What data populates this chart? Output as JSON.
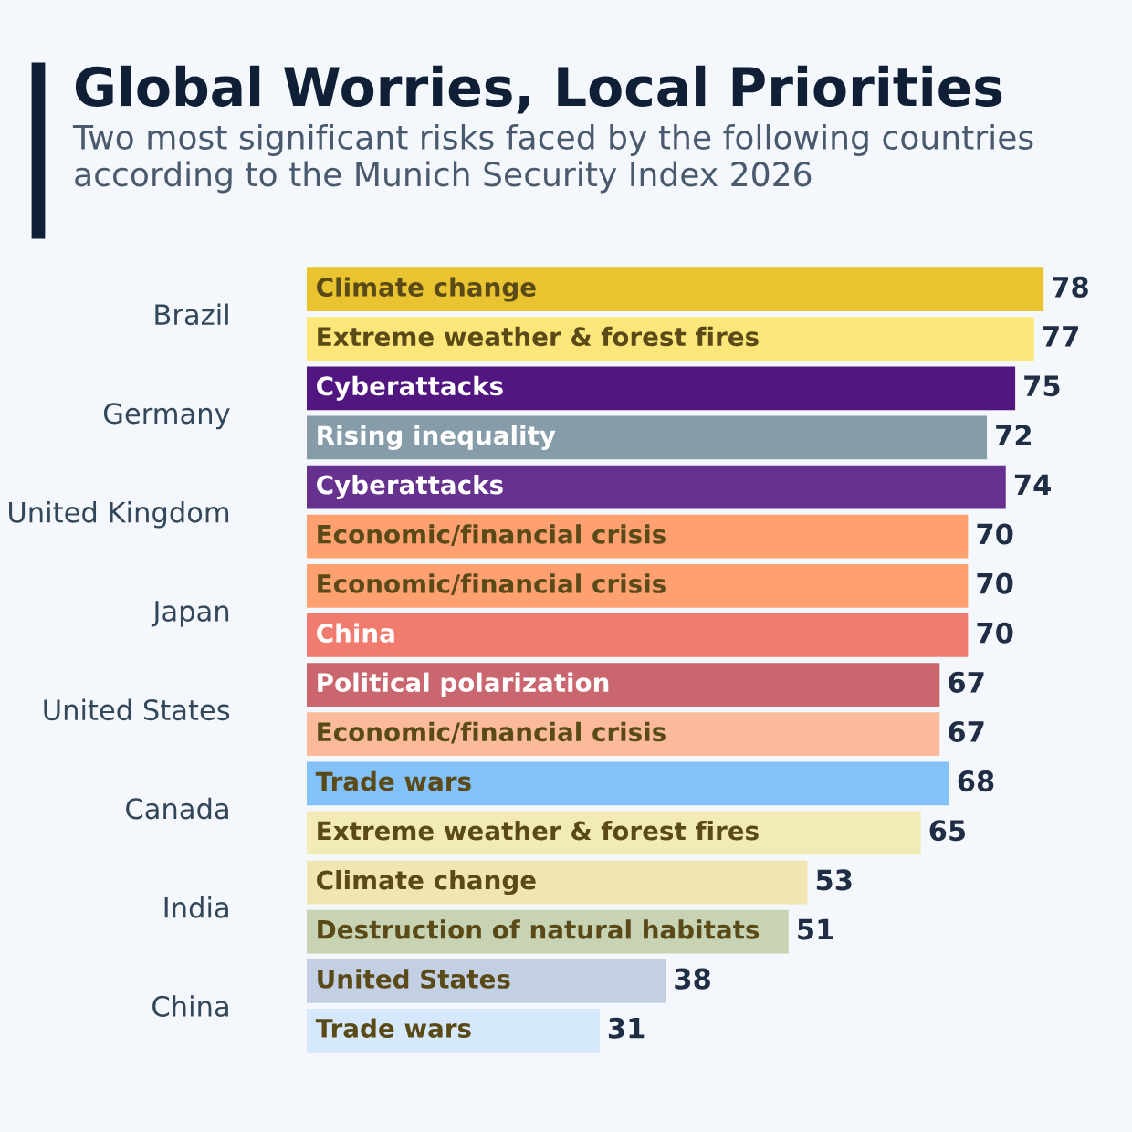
{
  "chart_data": {
    "type": "bar",
    "orientation": "horizontal",
    "title": "Global Worries, Local Priorities",
    "subtitle": "Two most significant risks faced by the following countries according to the Munich Security Index 2026",
    "categories": [
      "Brazil",
      "Germany",
      "United Kingdom",
      "Japan",
      "United States",
      "Canada",
      "India",
      "China"
    ],
    "series": [
      {
        "values": [
          78,
          75,
          74,
          70,
          67,
          68,
          53,
          38
        ],
        "colors": [
          "#e9c430",
          "#521680",
          "#66318f",
          "#ffa070",
          "#c9666e",
          "#83c2f9",
          "#f2e6b0",
          "#c3d0e3"
        ]
      },
      {
        "values": [
          77,
          72,
          70,
          70,
          67,
          65,
          51,
          31
        ],
        "colors": [
          "#fde67a",
          "#869ca9",
          "#ffa070",
          "#f07b6e",
          "#fbbb9a",
          "#f3ebb5",
          "#c8d3b4",
          "#d6e8fb"
        ]
      }
    ],
    "annotations": [
      {
        "text": "Climate change",
        "y": "Brazil"
      },
      {
        "text": "Extreme weather & forest fires",
        "y": "Brazil"
      },
      {
        "text": "Cyberattacks",
        "y": "Germany"
      },
      {
        "text": "Rising inequality",
        "y": "Germany"
      },
      {
        "text": "Cyberattacks",
        "y": "United Kingdom"
      },
      {
        "text": "Economic/financial crisis",
        "y": "United Kingdom"
      },
      {
        "text": "Economic/financial crisis",
        "y": "Japan"
      },
      {
        "text": "China",
        "y": "Japan"
      },
      {
        "text": "Political polarization",
        "y": "United States"
      },
      {
        "text": "Economic/financial crisis",
        "y": "United States"
      },
      {
        "text": "Trade wars",
        "y": "Canada"
      },
      {
        "text": "Extreme weather & forest fires",
        "y": "Canada"
      },
      {
        "text": "Climate change",
        "y": "India"
      },
      {
        "text": "Destruction of natural habitats",
        "y": "India"
      },
      {
        "text": "United States",
        "y": "China"
      },
      {
        "text": "Trade wars",
        "y": "China"
      }
    ],
    "data_labels": true
  }
}
